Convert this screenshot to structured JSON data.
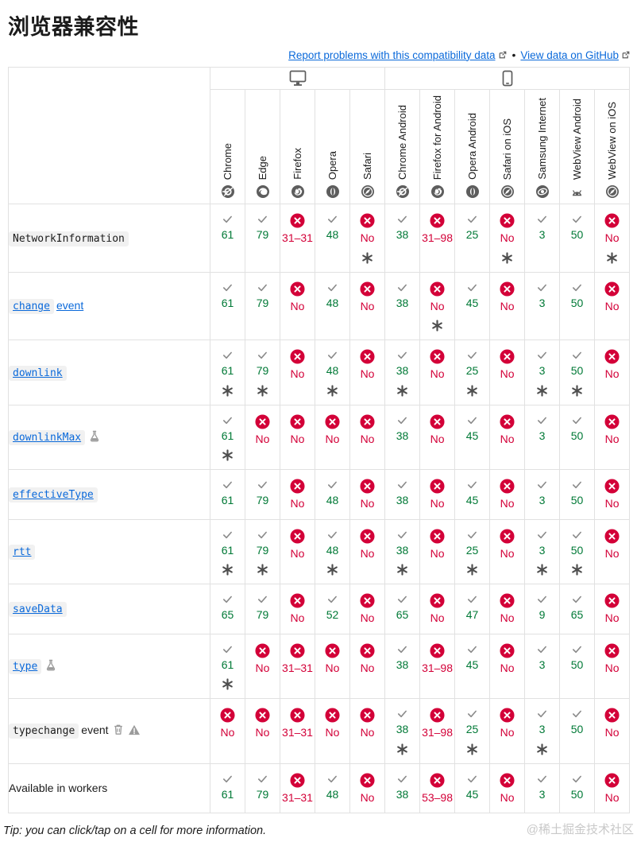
{
  "page": {
    "title": "浏览器兼容性",
    "tip": "Tip: you can click/tap on a cell for more information.",
    "watermark": "@稀土掘金技术社区"
  },
  "links": {
    "report_label": "Report problems with this compatibility data",
    "separator": "•",
    "github_label": "View data on GitHub"
  },
  "colors": {
    "link_blue": "#0a69da",
    "supported_green": "#007936",
    "unsupported_red": "#d30038",
    "muted_grey": "#797979",
    "border_grey": "#e1e1e1"
  },
  "table": {
    "groups": [
      {
        "icon": "desktop-icon",
        "span": 5
      },
      {
        "icon": "mobile-icon",
        "span": 7
      }
    ],
    "browsers": [
      {
        "label": "Chrome",
        "icon": "chrome-icon"
      },
      {
        "label": "Edge",
        "icon": "edge-icon"
      },
      {
        "label": "Firefox",
        "icon": "firefox-icon"
      },
      {
        "label": "Opera",
        "icon": "opera-icon"
      },
      {
        "label": "Safari",
        "icon": "safari-icon"
      },
      {
        "label": "Chrome Android",
        "icon": "chrome-icon"
      },
      {
        "label": "Firefox for Android",
        "icon": "firefox-icon"
      },
      {
        "label": "Opera Android",
        "icon": "opera-icon"
      },
      {
        "label": "Safari on iOS",
        "icon": "safari-icon"
      },
      {
        "label": "Samsung Internet",
        "icon": "samsung-icon"
      },
      {
        "label": "WebView Android",
        "icon": "android-icon"
      },
      {
        "label": "WebView on iOS",
        "icon": "safari-icon"
      }
    ],
    "rows": [
      {
        "feature": {
          "code": "NetworkInformation",
          "plain": "",
          "link": false,
          "badges": []
        },
        "cells": [
          {
            "support": "yes",
            "value": "61",
            "note": false
          },
          {
            "support": "yes",
            "value": "79",
            "note": false
          },
          {
            "support": "no",
            "value": "31–31",
            "note": false
          },
          {
            "support": "yes",
            "value": "48",
            "note": false
          },
          {
            "support": "no",
            "value": "No",
            "note": true
          },
          {
            "support": "yes",
            "value": "38",
            "note": false
          },
          {
            "support": "no",
            "value": "31–98",
            "note": false
          },
          {
            "support": "yes",
            "value": "25",
            "note": false
          },
          {
            "support": "no",
            "value": "No",
            "note": true
          },
          {
            "support": "yes",
            "value": "3",
            "note": false
          },
          {
            "support": "yes",
            "value": "50",
            "note": false
          },
          {
            "support": "no",
            "value": "No",
            "note": true
          }
        ]
      },
      {
        "feature": {
          "code": "change",
          "plain": "event",
          "link": true,
          "badges": []
        },
        "cells": [
          {
            "support": "yes",
            "value": "61",
            "note": false
          },
          {
            "support": "yes",
            "value": "79",
            "note": false
          },
          {
            "support": "no",
            "value": "No",
            "note": false
          },
          {
            "support": "yes",
            "value": "48",
            "note": false
          },
          {
            "support": "no",
            "value": "No",
            "note": false
          },
          {
            "support": "yes",
            "value": "38",
            "note": false
          },
          {
            "support": "no",
            "value": "No",
            "note": true
          },
          {
            "support": "yes",
            "value": "45",
            "note": false
          },
          {
            "support": "no",
            "value": "No",
            "note": false
          },
          {
            "support": "yes",
            "value": "3",
            "note": false
          },
          {
            "support": "yes",
            "value": "50",
            "note": false
          },
          {
            "support": "no",
            "value": "No",
            "note": false
          }
        ]
      },
      {
        "feature": {
          "code": "downlink",
          "plain": "",
          "link": true,
          "badges": []
        },
        "cells": [
          {
            "support": "yes",
            "value": "61",
            "note": true
          },
          {
            "support": "yes",
            "value": "79",
            "note": true
          },
          {
            "support": "no",
            "value": "No",
            "note": false
          },
          {
            "support": "yes",
            "value": "48",
            "note": true
          },
          {
            "support": "no",
            "value": "No",
            "note": false
          },
          {
            "support": "yes",
            "value": "38",
            "note": true
          },
          {
            "support": "no",
            "value": "No",
            "note": false
          },
          {
            "support": "yes",
            "value": "25",
            "note": true
          },
          {
            "support": "no",
            "value": "No",
            "note": false
          },
          {
            "support": "yes",
            "value": "3",
            "note": true
          },
          {
            "support": "yes",
            "value": "50",
            "note": true
          },
          {
            "support": "no",
            "value": "No",
            "note": false
          }
        ]
      },
      {
        "feature": {
          "code": "downlinkMax",
          "plain": "",
          "link": true,
          "badges": [
            "experimental"
          ]
        },
        "cells": [
          {
            "support": "yes",
            "value": "61",
            "note": true
          },
          {
            "support": "no",
            "value": "No",
            "note": false
          },
          {
            "support": "no",
            "value": "No",
            "note": false
          },
          {
            "support": "no",
            "value": "No",
            "note": false
          },
          {
            "support": "no",
            "value": "No",
            "note": false
          },
          {
            "support": "yes",
            "value": "38",
            "note": false
          },
          {
            "support": "no",
            "value": "No",
            "note": false
          },
          {
            "support": "yes",
            "value": "45",
            "note": false
          },
          {
            "support": "no",
            "value": "No",
            "note": false
          },
          {
            "support": "yes",
            "value": "3",
            "note": false
          },
          {
            "support": "yes",
            "value": "50",
            "note": false
          },
          {
            "support": "no",
            "value": "No",
            "note": false
          }
        ]
      },
      {
        "feature": {
          "code": "effectiveType",
          "plain": "",
          "link": true,
          "badges": []
        },
        "cells": [
          {
            "support": "yes",
            "value": "61",
            "note": false
          },
          {
            "support": "yes",
            "value": "79",
            "note": false
          },
          {
            "support": "no",
            "value": "No",
            "note": false
          },
          {
            "support": "yes",
            "value": "48",
            "note": false
          },
          {
            "support": "no",
            "value": "No",
            "note": false
          },
          {
            "support": "yes",
            "value": "38",
            "note": false
          },
          {
            "support": "no",
            "value": "No",
            "note": false
          },
          {
            "support": "yes",
            "value": "45",
            "note": false
          },
          {
            "support": "no",
            "value": "No",
            "note": false
          },
          {
            "support": "yes",
            "value": "3",
            "note": false
          },
          {
            "support": "yes",
            "value": "50",
            "note": false
          },
          {
            "support": "no",
            "value": "No",
            "note": false
          }
        ]
      },
      {
        "feature": {
          "code": "rtt",
          "plain": "",
          "link": true,
          "badges": []
        },
        "cells": [
          {
            "support": "yes",
            "value": "61",
            "note": true
          },
          {
            "support": "yes",
            "value": "79",
            "note": true
          },
          {
            "support": "no",
            "value": "No",
            "note": false
          },
          {
            "support": "yes",
            "value": "48",
            "note": true
          },
          {
            "support": "no",
            "value": "No",
            "note": false
          },
          {
            "support": "yes",
            "value": "38",
            "note": true
          },
          {
            "support": "no",
            "value": "No",
            "note": false
          },
          {
            "support": "yes",
            "value": "25",
            "note": true
          },
          {
            "support": "no",
            "value": "No",
            "note": false
          },
          {
            "support": "yes",
            "value": "3",
            "note": true
          },
          {
            "support": "yes",
            "value": "50",
            "note": true
          },
          {
            "support": "no",
            "value": "No",
            "note": false
          }
        ]
      },
      {
        "feature": {
          "code": "saveData",
          "plain": "",
          "link": true,
          "badges": []
        },
        "cells": [
          {
            "support": "yes",
            "value": "65",
            "note": false
          },
          {
            "support": "yes",
            "value": "79",
            "note": false
          },
          {
            "support": "no",
            "value": "No",
            "note": false
          },
          {
            "support": "yes",
            "value": "52",
            "note": false
          },
          {
            "support": "no",
            "value": "No",
            "note": false
          },
          {
            "support": "yes",
            "value": "65",
            "note": false
          },
          {
            "support": "no",
            "value": "No",
            "note": false
          },
          {
            "support": "yes",
            "value": "47",
            "note": false
          },
          {
            "support": "no",
            "value": "No",
            "note": false
          },
          {
            "support": "yes",
            "value": "9",
            "note": false
          },
          {
            "support": "yes",
            "value": "65",
            "note": false
          },
          {
            "support": "no",
            "value": "No",
            "note": false
          }
        ]
      },
      {
        "feature": {
          "code": "type",
          "plain": "",
          "link": true,
          "badges": [
            "experimental"
          ]
        },
        "cells": [
          {
            "support": "yes",
            "value": "61",
            "note": true
          },
          {
            "support": "no",
            "value": "No",
            "note": false
          },
          {
            "support": "no",
            "value": "31–31",
            "note": false
          },
          {
            "support": "no",
            "value": "No",
            "note": false
          },
          {
            "support": "no",
            "value": "No",
            "note": false
          },
          {
            "support": "yes",
            "value": "38",
            "note": false
          },
          {
            "support": "no",
            "value": "31–98",
            "note": false
          },
          {
            "support": "yes",
            "value": "45",
            "note": false
          },
          {
            "support": "no",
            "value": "No",
            "note": false
          },
          {
            "support": "yes",
            "value": "3",
            "note": false
          },
          {
            "support": "yes",
            "value": "50",
            "note": false
          },
          {
            "support": "no",
            "value": "No",
            "note": false
          }
        ]
      },
      {
        "feature": {
          "code": "typechange",
          "plain": "event",
          "link": false,
          "badges": [
            "deprecated",
            "warning"
          ]
        },
        "cells": [
          {
            "support": "no",
            "value": "No",
            "note": false
          },
          {
            "support": "no",
            "value": "No",
            "note": false
          },
          {
            "support": "no",
            "value": "31–31",
            "note": false
          },
          {
            "support": "no",
            "value": "No",
            "note": false
          },
          {
            "support": "no",
            "value": "No",
            "note": false
          },
          {
            "support": "yes",
            "value": "38",
            "note": true
          },
          {
            "support": "no",
            "value": "31–98",
            "note": false
          },
          {
            "support": "yes",
            "value": "25",
            "note": true
          },
          {
            "support": "no",
            "value": "No",
            "note": false
          },
          {
            "support": "yes",
            "value": "3",
            "note": true
          },
          {
            "support": "yes",
            "value": "50",
            "note": false
          },
          {
            "support": "no",
            "value": "No",
            "note": false
          }
        ]
      },
      {
        "feature": {
          "code": "",
          "plain": "Available in workers",
          "link": false,
          "badges": []
        },
        "cells": [
          {
            "support": "yes",
            "value": "61",
            "note": false
          },
          {
            "support": "yes",
            "value": "79",
            "note": false
          },
          {
            "support": "no",
            "value": "31–31",
            "note": false
          },
          {
            "support": "yes",
            "value": "48",
            "note": false
          },
          {
            "support": "no",
            "value": "No",
            "note": false
          },
          {
            "support": "yes",
            "value": "38",
            "note": false
          },
          {
            "support": "no",
            "value": "53–98",
            "note": false
          },
          {
            "support": "yes",
            "value": "45",
            "note": false
          },
          {
            "support": "no",
            "value": "No",
            "note": false
          },
          {
            "support": "yes",
            "value": "3",
            "note": false
          },
          {
            "support": "yes",
            "value": "50",
            "note": false
          },
          {
            "support": "no",
            "value": "No",
            "note": false
          }
        ]
      }
    ]
  }
}
